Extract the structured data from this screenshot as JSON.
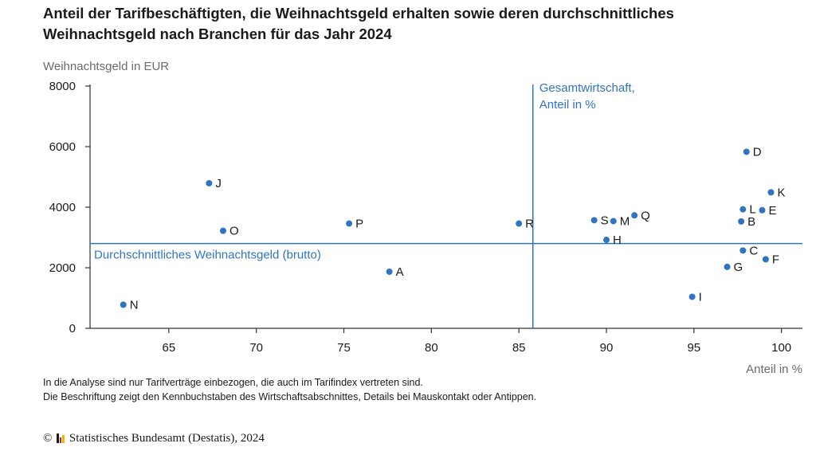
{
  "title": {
    "line1": "Anteil der Tarifbeschäftigten, die Weihnachtsgeld erhalten sowie deren durchschnittliches",
    "line2": "Weihnachtsgeld nach Branchen für das Jahr 2024"
  },
  "notes": {
    "line1": "In die Analyse sind nur Tarifverträge einbezogen, die auch im Tarifindex vertreten sind.",
    "line2": "Die Beschriftung zeigt den Kennbuchstaben des Wirtschaftsabschnittes, Details bei Mauskontakt oder Antippen."
  },
  "footer": {
    "copyright": "©",
    "source": "Statistisches Bundesamt (Destatis), 2024"
  },
  "colors": {
    "point": "#2f74c0",
    "reference_line": "#2f74c0",
    "axis": "#333333",
    "logo": [
      "#1a1a1a",
      "#d3202b",
      "#f2b300"
    ]
  },
  "chart_data": {
    "type": "scatter",
    "xlabel": "Anteil in %",
    "ylabel": "Weihnachtsgeld in EUR",
    "xlim": [
      60.5,
      101.2
    ],
    "ylim": [
      0,
      8000
    ],
    "xticks": [
      65,
      70,
      75,
      80,
      85,
      90,
      95,
      100
    ],
    "yticks": [
      0,
      2000,
      4000,
      6000,
      8000
    ],
    "grid": false,
    "reference_lines": {
      "vertical": {
        "x": 85.8,
        "label_line1": "Gesamtwirtschaft,",
        "label_line2": "Anteil in %"
      },
      "horizontal": {
        "y": 2800,
        "label": "Durchschnittliches Weihnachtsgeld (brutto)"
      }
    },
    "points": [
      {
        "label": "A",
        "x": 77.6,
        "y": 1870
      },
      {
        "label": "B",
        "x": 97.7,
        "y": 3530
      },
      {
        "label": "C",
        "x": 97.8,
        "y": 2570
      },
      {
        "label": "D",
        "x": 98.0,
        "y": 5830
      },
      {
        "label": "E",
        "x": 98.9,
        "y": 3900
      },
      {
        "label": "F",
        "x": 99.1,
        "y": 2280
      },
      {
        "label": "G",
        "x": 96.9,
        "y": 2030
      },
      {
        "label": "H",
        "x": 90.0,
        "y": 2920
      },
      {
        "label": "I",
        "x": 94.9,
        "y": 1040
      },
      {
        "label": "J",
        "x": 67.3,
        "y": 4790
      },
      {
        "label": "K",
        "x": 99.4,
        "y": 4490
      },
      {
        "label": "L",
        "x": 97.8,
        "y": 3930
      },
      {
        "label": "M",
        "x": 90.4,
        "y": 3540
      },
      {
        "label": "N",
        "x": 62.4,
        "y": 780
      },
      {
        "label": "O",
        "x": 68.1,
        "y": 3220
      },
      {
        "label": "P",
        "x": 75.3,
        "y": 3460
      },
      {
        "label": "Q",
        "x": 91.6,
        "y": 3730
      },
      {
        "label": "R",
        "x": 85.0,
        "y": 3460
      },
      {
        "label": "S",
        "x": 89.3,
        "y": 3570
      }
    ]
  }
}
